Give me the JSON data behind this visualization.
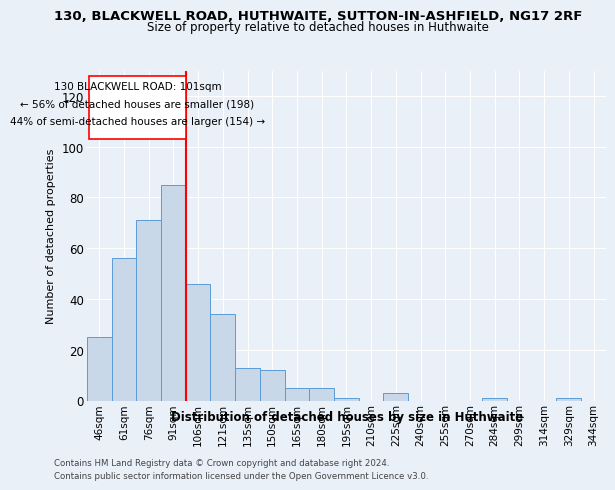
{
  "title": "130, BLACKWELL ROAD, HUTHWAITE, SUTTON-IN-ASHFIELD, NG17 2RF",
  "subtitle": "Size of property relative to detached houses in Huthwaite",
  "xlabel": "Distribution of detached houses by size in Huthwaite",
  "ylabel": "Number of detached properties",
  "categories": [
    "46sqm",
    "61sqm",
    "76sqm",
    "91sqm",
    "106sqm",
    "121sqm",
    "135sqm",
    "150sqm",
    "165sqm",
    "180sqm",
    "195sqm",
    "210sqm",
    "225sqm",
    "240sqm",
    "255sqm",
    "270sqm",
    "284sqm",
    "299sqm",
    "314sqm",
    "329sqm",
    "344sqm"
  ],
  "values": [
    25,
    56,
    71,
    85,
    46,
    34,
    13,
    12,
    5,
    5,
    1,
    0,
    3,
    0,
    0,
    0,
    1,
    0,
    0,
    1,
    0
  ],
  "bar_color": "#c8d8e8",
  "bar_edge_color": "#5b9bd5",
  "vline_color": "red",
  "annotation_text_line1": "130 BLACKWELL ROAD: 101sqm",
  "annotation_text_line2": "← 56% of detached houses are smaller (198)",
  "annotation_text_line3": "44% of semi-detached houses are larger (154) →",
  "ylim": [
    0,
    130
  ],
  "yticks": [
    0,
    20,
    40,
    60,
    80,
    100,
    120
  ],
  "footer_line1": "Contains HM Land Registry data © Crown copyright and database right 2024.",
  "footer_line2": "Contains public sector information licensed under the Open Government Licence v3.0.",
  "bg_color": "#eaf0f8",
  "plot_bg_color": "#eaf0f8",
  "grid_color": "#ffffff"
}
